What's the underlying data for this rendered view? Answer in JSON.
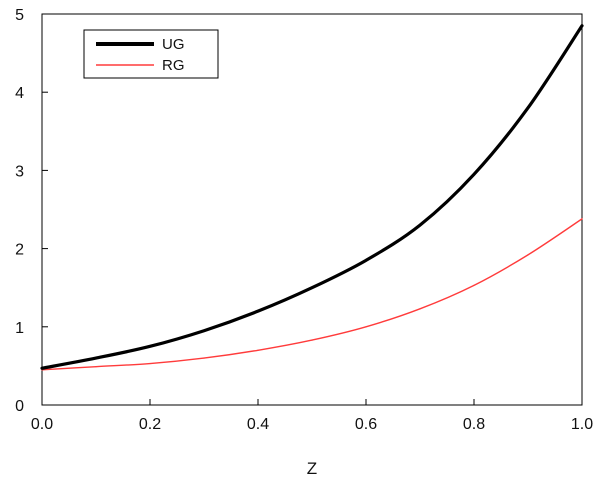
{
  "chart_data": {
    "type": "line",
    "title": "",
    "xlabel": "Z",
    "ylabel": "",
    "xlim": [
      0,
      1
    ],
    "ylim": [
      0,
      5
    ],
    "x_ticks": [
      "0.0",
      "0.2",
      "0.4",
      "0.6",
      "0.8",
      "1.0"
    ],
    "y_ticks": [
      "0",
      "1",
      "2",
      "3",
      "4",
      "5"
    ],
    "grid": false,
    "legend_position": "top-left",
    "x": [
      0.0,
      0.1,
      0.2,
      0.3,
      0.4,
      0.5,
      0.6,
      0.7,
      0.8,
      0.9,
      1.0
    ],
    "series": [
      {
        "name": "UG",
        "color": "#000000",
        "values": [
          0.47,
          0.6,
          0.75,
          0.95,
          1.2,
          1.5,
          1.85,
          2.3,
          2.95,
          3.8,
          4.85
        ]
      },
      {
        "name": "RG",
        "color": "#ff3b3b",
        "values": [
          0.45,
          0.49,
          0.53,
          0.6,
          0.7,
          0.83,
          1.0,
          1.23,
          1.53,
          1.92,
          2.38
        ]
      }
    ]
  }
}
